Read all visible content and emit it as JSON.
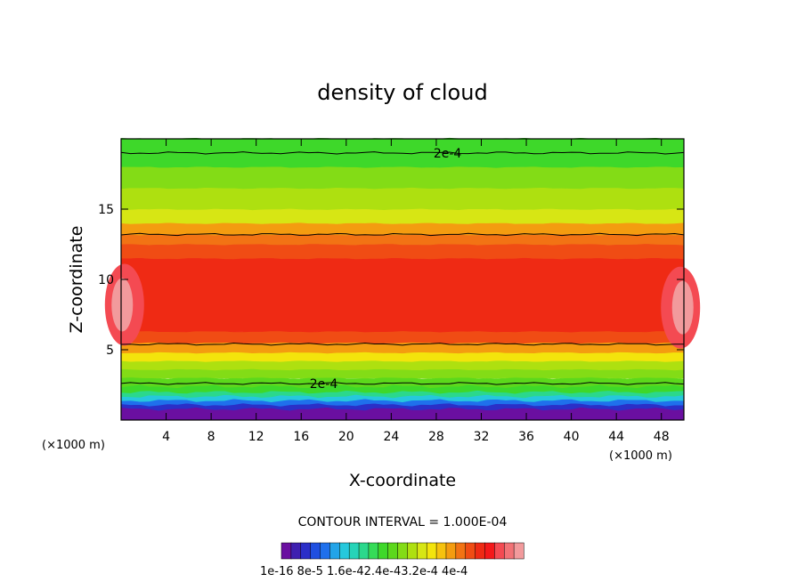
{
  "chart_data": {
    "type": "contour",
    "title": "density of cloud",
    "xlabel": "X-coordinate",
    "ylabel": "Z-coordinate",
    "x_unit": "(×1000 m)",
    "x_ticks": [
      4,
      8,
      12,
      16,
      20,
      24,
      28,
      32,
      36,
      40,
      44,
      48
    ],
    "y_ticks": [
      5,
      10,
      15
    ],
    "xlim": [
      0,
      50
    ],
    "ylim": [
      0,
      20
    ],
    "contour_interval_text": "CONTOUR INTERVAL = 1.000E-04",
    "contour_label": "2e-4",
    "colorbar": {
      "label_text": "1e-16  8e-5  1.6e-42.4e-43.2e-4  4e-4",
      "colors": [
        "#6a0fa0",
        "#3e1fb0",
        "#2b2fc8",
        "#1f4fe0",
        "#1f70ec",
        "#23a4e8",
        "#26c8dc",
        "#26d4b8",
        "#2bd88c",
        "#35dc58",
        "#3ed82a",
        "#5cd81c",
        "#83dc16",
        "#aee010",
        "#d7e614",
        "#f3e40c",
        "#f6c20e",
        "#f49c10",
        "#f27314",
        "#f04c14",
        "#ef2a14",
        "#f4181a",
        "#f44a52",
        "#f27276",
        "#f29a9c"
      ]
    },
    "bands": [
      {
        "z": [
          0.0,
          0.8
        ],
        "color": "#6a0fa0"
      },
      {
        "z": [
          0.8,
          1.1
        ],
        "color": "#2b2fc8"
      },
      {
        "z": [
          1.1,
          1.4
        ],
        "color": "#1f70ec"
      },
      {
        "z": [
          1.4,
          1.7
        ],
        "color": "#26c8dc"
      },
      {
        "z": [
          1.7,
          2.0
        ],
        "color": "#2bd88c"
      },
      {
        "z": [
          2.0,
          2.4
        ],
        "color": "#3ed82a"
      },
      {
        "z": [
          2.4,
          3.0
        ],
        "color": "#5cd81c"
      },
      {
        "z": [
          3.0,
          3.6
        ],
        "color": "#83dc16"
      },
      {
        "z": [
          3.6,
          4.2
        ],
        "color": "#aee010"
      },
      {
        "z": [
          4.2,
          4.8
        ],
        "color": "#f3e40c"
      },
      {
        "z": [
          4.8,
          5.5
        ],
        "color": "#f49c10"
      },
      {
        "z": [
          5.5,
          6.3
        ],
        "color": "#f04c14"
      },
      {
        "z": [
          6.3,
          11.5
        ],
        "color": "#ef2a14"
      },
      {
        "z": [
          11.5,
          12.5
        ],
        "color": "#f04c14"
      },
      {
        "z": [
          12.5,
          13.2
        ],
        "color": "#f27314"
      },
      {
        "z": [
          13.2,
          14.0
        ],
        "color": "#f49c10"
      },
      {
        "z": [
          14.0,
          15.0
        ],
        "color": "#d7e614"
      },
      {
        "z": [
          15.0,
          16.5
        ],
        "color": "#aee010"
      },
      {
        "z": [
          16.5,
          18.0
        ],
        "color": "#83dc16"
      },
      {
        "z": [
          18.0,
          20.0
        ],
        "color": "#3ed82a"
      }
    ],
    "contour_lines": [
      {
        "z": 2.6,
        "label_at_x": 18
      },
      {
        "z": 5.4
      },
      {
        "z": 13.2
      },
      {
        "z": 19.0,
        "label_at_x": 29
      }
    ]
  }
}
